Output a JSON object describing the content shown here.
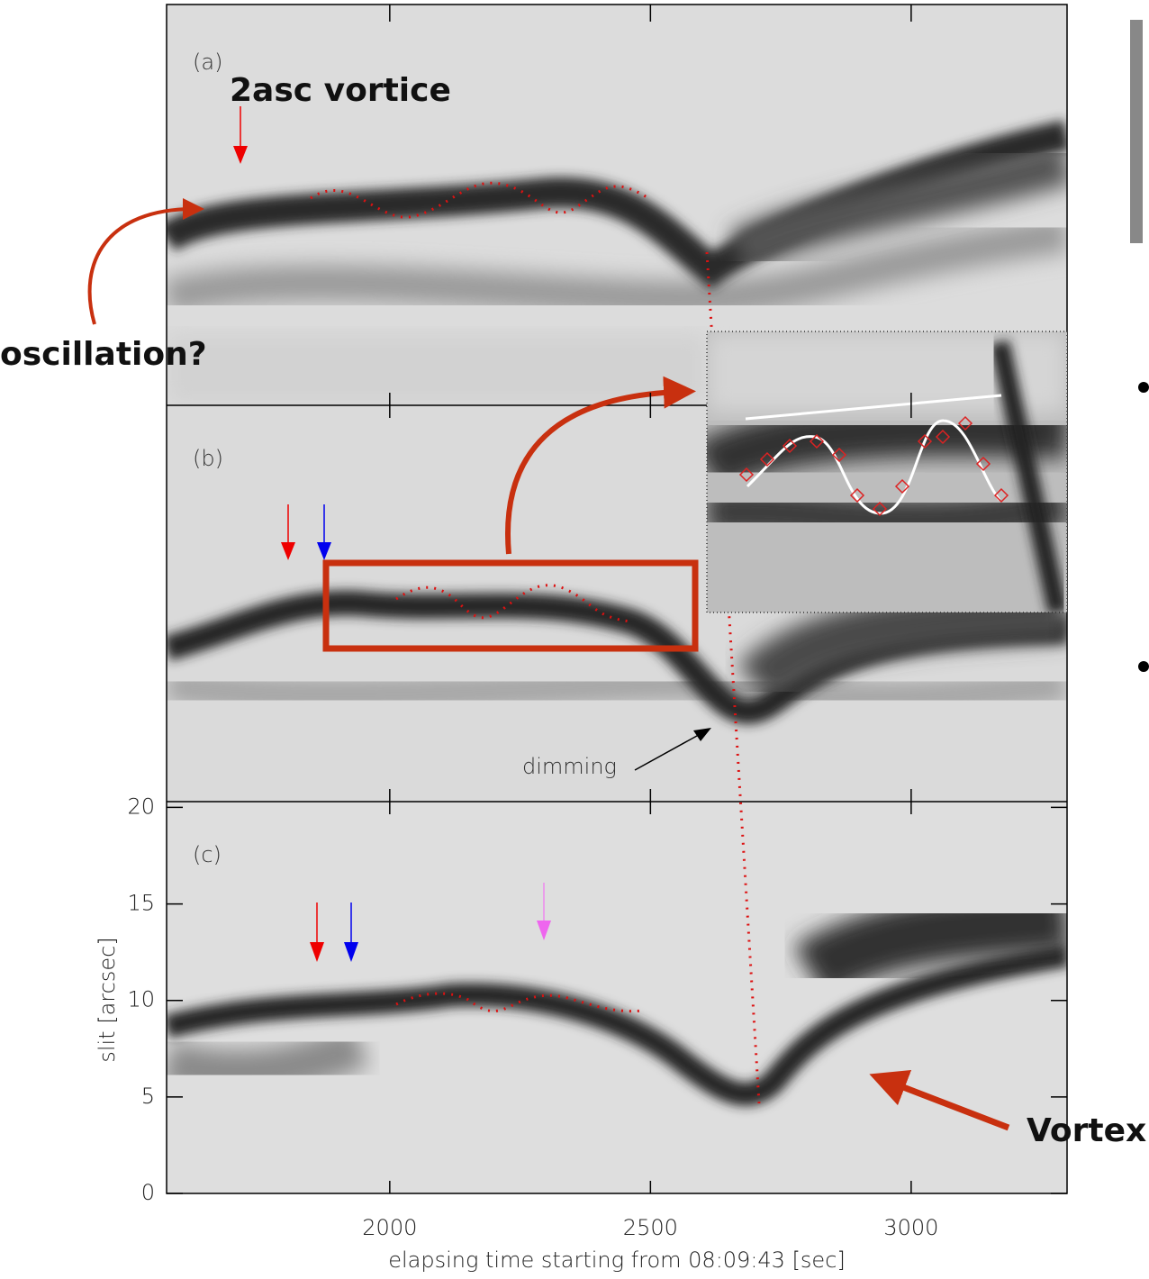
{
  "chart_data": {
    "type": "image-stack",
    "panels": [
      "(a)",
      "(b)",
      "(c)"
    ],
    "xlabel": "elapsing time starting from 08:09:43 [sec]",
    "ylabel": "slit [arcsec]",
    "xlim": [
      1572,
      3299
    ],
    "xticks": [
      2000,
      2500,
      3000
    ],
    "ylim": [
      0,
      20.3
    ],
    "yticks": [
      0,
      5,
      10,
      15,
      20
    ],
    "annotations": [
      "2asc vortice",
      "oscillation?",
      "dimming",
      "Vortex"
    ]
  }
}
